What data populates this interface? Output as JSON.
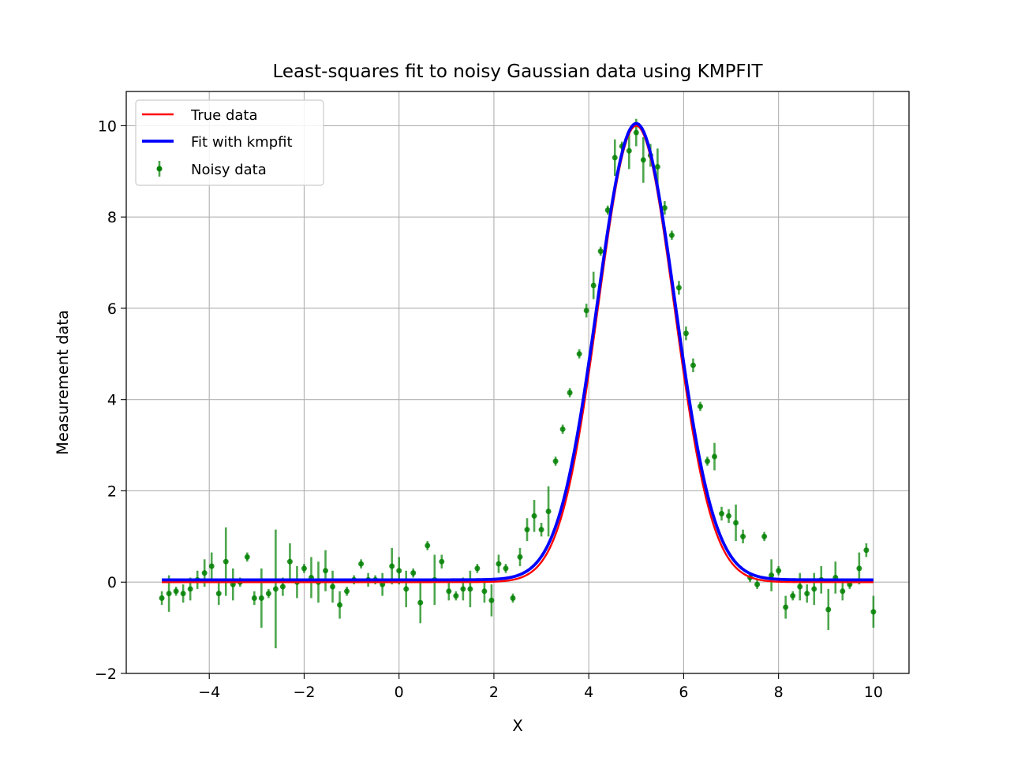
{
  "chart_data": {
    "type": "line",
    "title": "Least-squares fit to noisy Gaussian data using KMPFIT",
    "xlabel": "X",
    "ylabel": "Measurement data",
    "xlim": [
      -5.75,
      10.75
    ],
    "ylim": [
      -2.0,
      10.75
    ],
    "x_ticks": [
      -4,
      -2,
      0,
      2,
      4,
      6,
      8,
      10
    ],
    "x_tick_labels": [
      "−4",
      "−2",
      "0",
      "2",
      "4",
      "6",
      "8",
      "10"
    ],
    "y_ticks": [
      -2,
      0,
      2,
      4,
      6,
      8,
      10
    ],
    "y_tick_labels": [
      "−2",
      "0",
      "2",
      "4",
      "6",
      "8",
      "10"
    ],
    "grid": true,
    "legend_position": "top-left",
    "colors": {
      "true": "#ff0000",
      "fit": "#0000ff",
      "noisy": "#008000"
    },
    "series": [
      {
        "name": "True data",
        "kind": "line",
        "color": "#ff0000",
        "model": {
          "amplitude": 10.0,
          "center": 5.0,
          "sigma": 0.8,
          "offset": 0.0
        },
        "x_range": [
          -5,
          10
        ]
      },
      {
        "name": "Fit with kmpfit",
        "kind": "line",
        "color": "#0000ff",
        "model": {
          "amplitude": 10.0,
          "center": 5.0,
          "sigma": 0.82,
          "offset": 0.05
        },
        "x_range": [
          -5,
          10
        ]
      },
      {
        "name": "Noisy data",
        "kind": "errorbar",
        "color": "#008000",
        "points": [
          {
            "x": -5.0,
            "y": -0.35,
            "err": 0.15
          },
          {
            "x": -4.85,
            "y": -0.25,
            "err": 0.4
          },
          {
            "x": -4.7,
            "y": -0.2,
            "err": 0.1
          },
          {
            "x": -4.55,
            "y": -0.25,
            "err": 0.2
          },
          {
            "x": -4.4,
            "y": -0.15,
            "err": 0.25
          },
          {
            "x": -4.25,
            "y": 0.05,
            "err": 0.2
          },
          {
            "x": -4.1,
            "y": 0.2,
            "err": 0.3
          },
          {
            "x": -3.95,
            "y": 0.35,
            "err": 0.3
          },
          {
            "x": -3.8,
            "y": -0.25,
            "err": 0.25
          },
          {
            "x": -3.65,
            "y": 0.45,
            "err": 0.75
          },
          {
            "x": -3.5,
            "y": -0.05,
            "err": 0.35
          },
          {
            "x": -3.35,
            "y": 0.0,
            "err": 0.1
          },
          {
            "x": -3.2,
            "y": 0.55,
            "err": 0.1
          },
          {
            "x": -3.05,
            "y": -0.35,
            "err": 0.15
          },
          {
            "x": -2.9,
            "y": -0.35,
            "err": 0.65
          },
          {
            "x": -2.75,
            "y": -0.25,
            "err": 0.1
          },
          {
            "x": -2.6,
            "y": -0.15,
            "err": 1.3
          },
          {
            "x": -2.45,
            "y": -0.1,
            "err": 0.2
          },
          {
            "x": -2.3,
            "y": 0.45,
            "err": 0.4
          },
          {
            "x": -2.15,
            "y": 0.0,
            "err": 0.35
          },
          {
            "x": -2.0,
            "y": 0.3,
            "err": 0.1
          },
          {
            "x": -1.85,
            "y": 0.1,
            "err": 0.45
          },
          {
            "x": -1.7,
            "y": 0.0,
            "err": 0.45
          },
          {
            "x": -1.55,
            "y": 0.25,
            "err": 0.45
          },
          {
            "x": -1.4,
            "y": -0.1,
            "err": 0.35
          },
          {
            "x": -1.25,
            "y": -0.5,
            "err": 0.3
          },
          {
            "x": -1.1,
            "y": -0.2,
            "err": 0.1
          },
          {
            "x": -0.95,
            "y": 0.05,
            "err": 0.1
          },
          {
            "x": -0.8,
            "y": 0.4,
            "err": 0.1
          },
          {
            "x": -0.65,
            "y": 0.05,
            "err": 0.15
          },
          {
            "x": -0.5,
            "y": 0.05,
            "err": 0.1
          },
          {
            "x": -0.35,
            "y": -0.05,
            "err": 0.25
          },
          {
            "x": -0.15,
            "y": 0.35,
            "err": 0.4
          },
          {
            "x": 0.0,
            "y": 0.25,
            "err": 0.3
          },
          {
            "x": 0.15,
            "y": -0.15,
            "err": 0.4
          },
          {
            "x": 0.3,
            "y": 0.2,
            "err": 0.1
          },
          {
            "x": 0.45,
            "y": -0.45,
            "err": 0.45
          },
          {
            "x": 0.6,
            "y": 0.8,
            "err": 0.1
          },
          {
            "x": 0.75,
            "y": 0.05,
            "err": 0.55
          },
          {
            "x": 0.9,
            "y": 0.45,
            "err": 0.15
          },
          {
            "x": 1.05,
            "y": -0.2,
            "err": 0.2
          },
          {
            "x": 1.2,
            "y": -0.3,
            "err": 0.1
          },
          {
            "x": 1.35,
            "y": -0.15,
            "err": 0.25
          },
          {
            "x": 1.5,
            "y": -0.15,
            "err": 0.4
          },
          {
            "x": 1.65,
            "y": 0.3,
            "err": 0.1
          },
          {
            "x": 1.8,
            "y": -0.2,
            "err": 0.25
          },
          {
            "x": 1.95,
            "y": -0.4,
            "err": 0.35
          },
          {
            "x": 2.1,
            "y": 0.4,
            "err": 0.2
          },
          {
            "x": 2.25,
            "y": 0.3,
            "err": 0.1
          },
          {
            "x": 2.4,
            "y": -0.35,
            "err": 0.1
          },
          {
            "x": 2.55,
            "y": 0.55,
            "err": 0.2
          },
          {
            "x": 2.7,
            "y": 1.15,
            "err": 0.25
          },
          {
            "x": 2.85,
            "y": 1.45,
            "err": 0.35
          },
          {
            "x": 3.0,
            "y": 1.15,
            "err": 0.15
          },
          {
            "x": 3.15,
            "y": 1.55,
            "err": 0.55
          },
          {
            "x": 3.3,
            "y": 2.65,
            "err": 0.1
          },
          {
            "x": 3.45,
            "y": 3.35,
            "err": 0.1
          },
          {
            "x": 3.6,
            "y": 4.15,
            "err": 0.1
          },
          {
            "x": 3.8,
            "y": 5.0,
            "err": 0.1
          },
          {
            "x": 3.95,
            "y": 5.95,
            "err": 0.15
          },
          {
            "x": 4.1,
            "y": 6.5,
            "err": 0.3
          },
          {
            "x": 4.25,
            "y": 7.25,
            "err": 0.1
          },
          {
            "x": 4.4,
            "y": 8.15,
            "err": 0.1
          },
          {
            "x": 4.55,
            "y": 9.3,
            "err": 0.4
          },
          {
            "x": 4.7,
            "y": 9.55,
            "err": 0.1
          },
          {
            "x": 4.85,
            "y": 9.45,
            "err": 0.4
          },
          {
            "x": 5.0,
            "y": 9.85,
            "err": 0.3
          },
          {
            "x": 5.15,
            "y": 9.25,
            "err": 0.5
          },
          {
            "x": 5.3,
            "y": 9.35,
            "err": 0.25
          },
          {
            "x": 5.45,
            "y": 9.1,
            "err": 0.4
          },
          {
            "x": 5.6,
            "y": 8.2,
            "err": 0.15
          },
          {
            "x": 5.75,
            "y": 7.6,
            "err": 0.1
          },
          {
            "x": 5.9,
            "y": 6.45,
            "err": 0.15
          },
          {
            "x": 6.05,
            "y": 5.45,
            "err": 0.15
          },
          {
            "x": 6.2,
            "y": 4.75,
            "err": 0.15
          },
          {
            "x": 6.35,
            "y": 3.85,
            "err": 0.1
          },
          {
            "x": 6.5,
            "y": 2.65,
            "err": 0.1
          },
          {
            "x": 6.65,
            "y": 2.75,
            "err": 0.3
          },
          {
            "x": 6.8,
            "y": 1.5,
            "err": 0.15
          },
          {
            "x": 6.95,
            "y": 1.45,
            "err": 0.15
          },
          {
            "x": 7.1,
            "y": 1.3,
            "err": 0.4
          },
          {
            "x": 7.25,
            "y": 1.0,
            "err": 0.15
          },
          {
            "x": 7.4,
            "y": 0.1,
            "err": 0.1
          },
          {
            "x": 7.55,
            "y": -0.05,
            "err": 0.1
          },
          {
            "x": 7.7,
            "y": 1.0,
            "err": 0.1
          },
          {
            "x": 7.85,
            "y": 0.15,
            "err": 0.35
          },
          {
            "x": 8.0,
            "y": 0.25,
            "err": 0.1
          },
          {
            "x": 8.15,
            "y": -0.55,
            "err": 0.25
          },
          {
            "x": 8.3,
            "y": -0.3,
            "err": 0.1
          },
          {
            "x": 8.45,
            "y": -0.1,
            "err": 0.3
          },
          {
            "x": 8.6,
            "y": -0.25,
            "err": 0.2
          },
          {
            "x": 8.75,
            "y": -0.15,
            "err": 0.35
          },
          {
            "x": 8.9,
            "y": 0.05,
            "err": 0.3
          },
          {
            "x": 9.05,
            "y": -0.6,
            "err": 0.45
          },
          {
            "x": 9.2,
            "y": 0.1,
            "err": 0.35
          },
          {
            "x": 9.35,
            "y": -0.2,
            "err": 0.2
          },
          {
            "x": 9.5,
            "y": -0.05,
            "err": 0.1
          },
          {
            "x": 9.7,
            "y": 0.3,
            "err": 0.35
          },
          {
            "x": 9.85,
            "y": 0.7,
            "err": 0.15
          },
          {
            "x": 10.0,
            "y": -0.65,
            "err": 0.35
          }
        ]
      }
    ]
  }
}
